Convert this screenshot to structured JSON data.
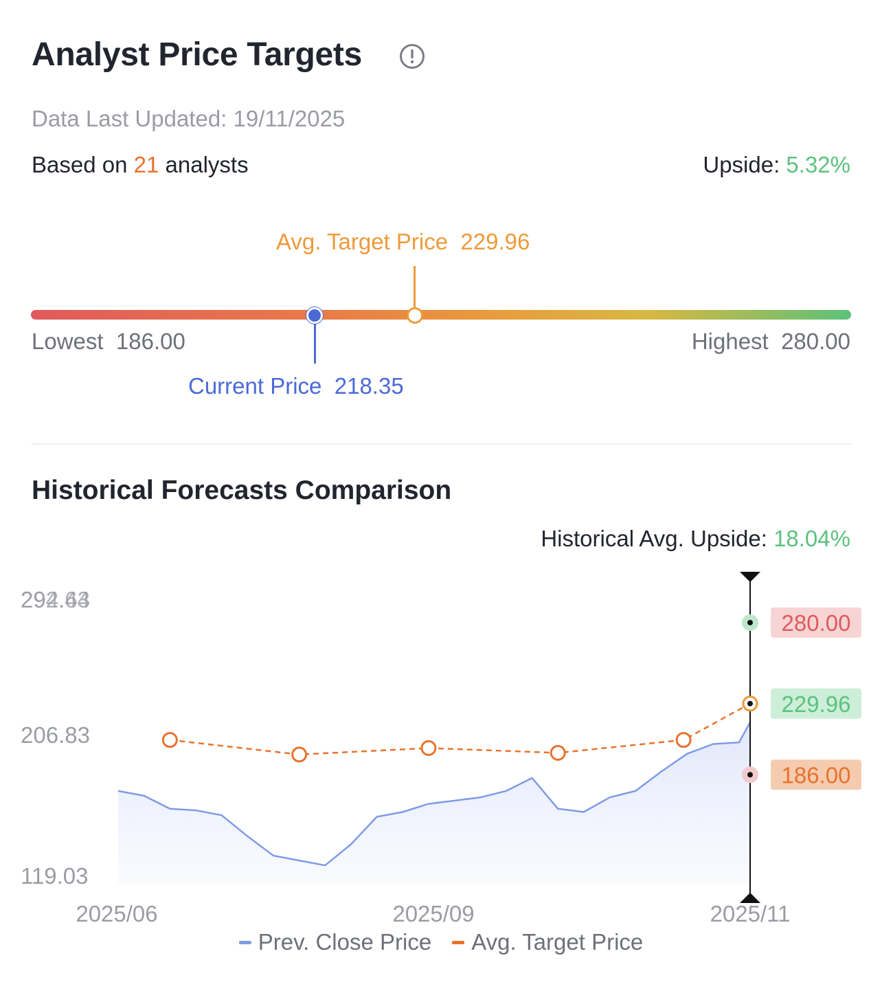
{
  "header": {
    "title": "Analyst Price Targets",
    "info_icon": "info-circle-icon",
    "updated_label": "Data Last Updated:",
    "updated_value": "19/11/2025",
    "based_prefix": "Based on",
    "analyst_count": "21",
    "based_suffix": "analysts",
    "upside_label": "Upside:",
    "upside_value": "5.32%"
  },
  "range": {
    "avg_label": "Avg. Target Price",
    "avg_value": "229.96",
    "current_label": "Current Price",
    "current_value": "218.35",
    "lowest_label": "Lowest",
    "lowest_value": "186.00",
    "highest_label": "Highest",
    "highest_value": "280.00",
    "lowest_num": 186.0,
    "highest_num": 280.0,
    "avg_num": 229.96,
    "current_num": 218.35
  },
  "history": {
    "title": "Historical Forecasts Comparison",
    "upside_label": "Historical Avg. Upside:",
    "upside_value": "18.04%"
  },
  "colors": {
    "accent_orange": "#e8722c",
    "avg_orange": "#ee9a3a",
    "current_blue": "#4a6ad6",
    "positive_green": "#5bc27e",
    "price_line": "#7f9be6"
  },
  "chart_data": {
    "type": "line",
    "y_tick_labels": [
      "294.43",
      "292.64",
      "206.83",
      "119.03"
    ],
    "x_tick_labels": [
      "2025/06",
      "2025/09",
      "2025/11"
    ],
    "ylim": [
      119.03,
      294.43
    ],
    "grid": false,
    "legend_position": "bottom",
    "series": [
      {
        "name": "Prev. Close Price",
        "dates": [
          "2025/06/01",
          "2025/06/08",
          "2025/06/15",
          "2025/06/22",
          "2025/06/29",
          "2025/07/06",
          "2025/07/13",
          "2025/07/20",
          "2025/07/27",
          "2025/08/03",
          "2025/08/10",
          "2025/08/17",
          "2025/08/24",
          "2025/08/31",
          "2025/09/07",
          "2025/09/14",
          "2025/09/21",
          "2025/09/28",
          "2025/10/05",
          "2025/10/12",
          "2025/10/19",
          "2025/10/26",
          "2025/11/02",
          "2025/11/09",
          "2025/11/16",
          "2025/11/19"
        ],
        "values": [
          176,
          173,
          165,
          164,
          161,
          148,
          136,
          133,
          130,
          143,
          160,
          163,
          168,
          170,
          172,
          176,
          184,
          165,
          163,
          172,
          176,
          188,
          199,
          205,
          206,
          218.35
        ]
      },
      {
        "name": "Avg. Target Price",
        "dates": [
          "2025/06/15",
          "2025/07/20",
          "2025/08/24",
          "2025/09/28",
          "2025/11/01",
          "2025/11/19"
        ],
        "values": [
          207.5,
          198.5,
          202.5,
          199.5,
          207.5,
          229.96
        ]
      }
    ],
    "tooltip": {
      "date": "2025/11/19",
      "values": [
        {
          "label": "280.00",
          "value": 280.0,
          "color": "#e05a5c",
          "bg": "#f7d4d4",
          "dot": "#bfe6cd"
        },
        {
          "label": "229.96",
          "value": 229.96,
          "color": "#5bc27e",
          "bg": "#cdeed8",
          "dot": "#ee9a3a"
        },
        {
          "label": "186.00",
          "value": 186.0,
          "color": "#e8722c",
          "bg": "#f5cbb0",
          "dot": "#f2c9cf"
        }
      ]
    }
  }
}
